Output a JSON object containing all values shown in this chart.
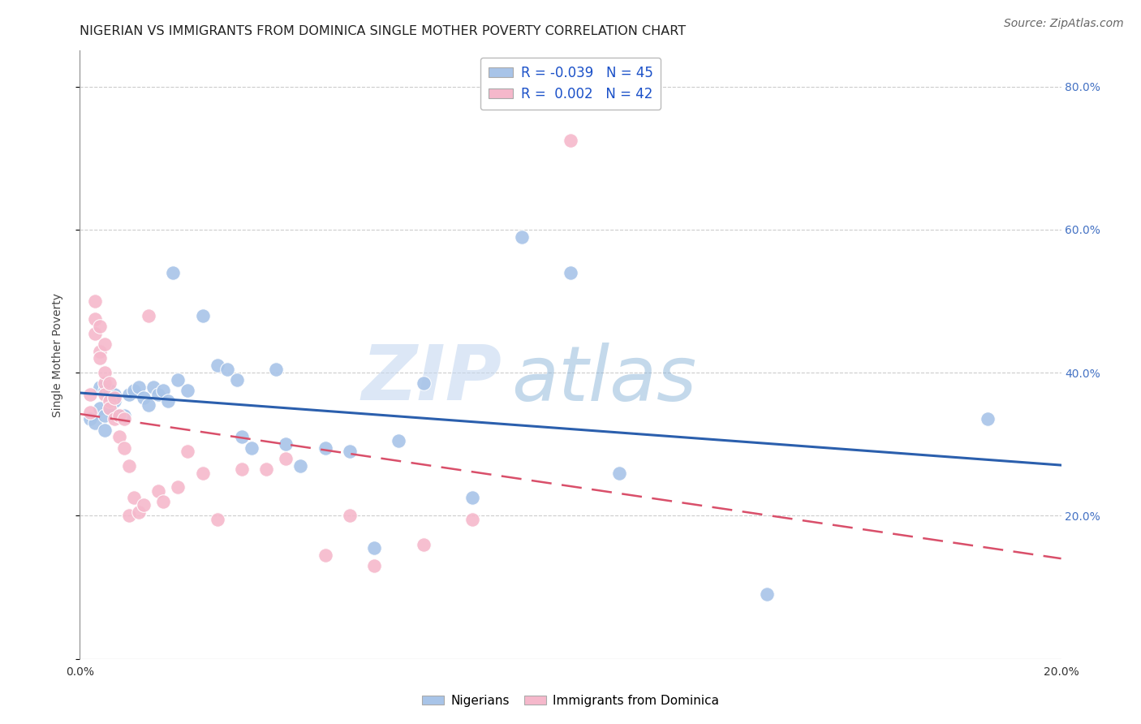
{
  "title": "NIGERIAN VS IMMIGRANTS FROM DOMINICA SINGLE MOTHER POVERTY CORRELATION CHART",
  "source": "Source: ZipAtlas.com",
  "ylabel": "Single Mother Poverty",
  "xmin": 0.0,
  "xmax": 0.2,
  "ymin": 0.0,
  "ymax": 0.85,
  "legend_labels": [
    "Nigerians",
    "Immigrants from Dominica"
  ],
  "legend_R": [
    -0.039,
    0.002
  ],
  "legend_N": [
    45,
    42
  ],
  "blue_color": "#a8c4e8",
  "pink_color": "#f5b8cb",
  "trendline_blue": "#2b5fad",
  "trendline_pink": "#d94f6a",
  "nigerians_x": [
    0.002,
    0.003,
    0.004,
    0.004,
    0.005,
    0.005,
    0.005,
    0.006,
    0.006,
    0.007,
    0.007,
    0.008,
    0.009,
    0.01,
    0.011,
    0.012,
    0.013,
    0.014,
    0.015,
    0.016,
    0.017,
    0.018,
    0.019,
    0.02,
    0.022,
    0.025,
    0.028,
    0.03,
    0.032,
    0.033,
    0.035,
    0.04,
    0.042,
    0.045,
    0.05,
    0.055,
    0.06,
    0.065,
    0.07,
    0.08,
    0.09,
    0.1,
    0.11,
    0.14,
    0.185
  ],
  "nigerians_y": [
    0.335,
    0.33,
    0.38,
    0.35,
    0.34,
    0.375,
    0.32,
    0.35,
    0.375,
    0.37,
    0.36,
    0.34,
    0.34,
    0.37,
    0.375,
    0.38,
    0.365,
    0.355,
    0.38,
    0.37,
    0.375,
    0.36,
    0.54,
    0.39,
    0.375,
    0.48,
    0.41,
    0.405,
    0.39,
    0.31,
    0.295,
    0.405,
    0.3,
    0.27,
    0.295,
    0.29,
    0.155,
    0.305,
    0.385,
    0.225,
    0.59,
    0.54,
    0.26,
    0.09,
    0.335
  ],
  "dominica_x": [
    0.002,
    0.002,
    0.003,
    0.003,
    0.003,
    0.004,
    0.004,
    0.004,
    0.005,
    0.005,
    0.005,
    0.005,
    0.006,
    0.006,
    0.006,
    0.007,
    0.007,
    0.008,
    0.008,
    0.009,
    0.009,
    0.01,
    0.01,
    0.011,
    0.012,
    0.013,
    0.014,
    0.016,
    0.017,
    0.02,
    0.022,
    0.025,
    0.028,
    0.033,
    0.038,
    0.042,
    0.05,
    0.055,
    0.06,
    0.07,
    0.08,
    0.1
  ],
  "dominica_y": [
    0.345,
    0.37,
    0.455,
    0.475,
    0.5,
    0.43,
    0.465,
    0.42,
    0.385,
    0.4,
    0.44,
    0.37,
    0.36,
    0.385,
    0.35,
    0.365,
    0.335,
    0.31,
    0.34,
    0.295,
    0.335,
    0.27,
    0.2,
    0.225,
    0.205,
    0.215,
    0.48,
    0.235,
    0.22,
    0.24,
    0.29,
    0.26,
    0.195,
    0.265,
    0.265,
    0.28,
    0.145,
    0.2,
    0.13,
    0.16,
    0.195,
    0.725
  ],
  "yticks": [
    0.0,
    0.2,
    0.4,
    0.6,
    0.8
  ],
  "ytick_labels_right": [
    "",
    "20.0%",
    "40.0%",
    "60.0%",
    "80.0%"
  ],
  "xticks": [
    0.0,
    0.04,
    0.08,
    0.12,
    0.16,
    0.2
  ],
  "xtick_labels": [
    "0.0%",
    "",
    "",
    "",
    "",
    "20.0%"
  ],
  "watermark_zip": "ZIP",
  "watermark_atlas": "atlas",
  "title_fontsize": 11.5,
  "label_fontsize": 10,
  "tick_fontsize": 10,
  "source_fontsize": 10,
  "legend_fontsize": 12
}
